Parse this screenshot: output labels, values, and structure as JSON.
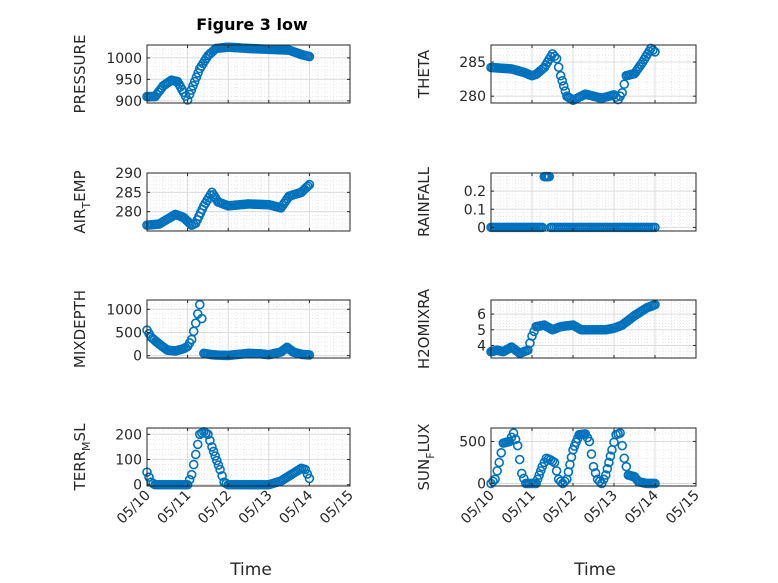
{
  "figure": {
    "title": "Figure 3 low",
    "xlabel": "Time"
  },
  "colors": {
    "marker": "#0072bd",
    "axis": "#262626",
    "grid": "#dcdcdc"
  },
  "chart_data": [
    {
      "id": "pressure",
      "type": "scatter",
      "ylabel": "PRESSURE",
      "ylim": [
        895,
        1030
      ],
      "yticks": [
        900,
        950,
        1000
      ],
      "ytick_labels": [
        "900",
        "950",
        "1000"
      ],
      "xlim": [
        0,
        5
      ],
      "xticks": [
        0,
        1,
        2,
        3,
        4,
        5
      ],
      "xtick_labels": [
        "05/10",
        "05/11",
        "05/12",
        "05/13",
        "05/14",
        "05/15"
      ],
      "show_xtick_labels": false,
      "keypoints": [
        [
          0,
          910
        ],
        [
          0.2,
          910
        ],
        [
          0.4,
          935
        ],
        [
          0.6,
          948
        ],
        [
          0.75,
          945
        ],
        [
          0.9,
          920
        ],
        [
          1.0,
          902
        ],
        [
          1.05,
          915
        ],
        [
          1.3,
          975
        ],
        [
          1.5,
          1005
        ],
        [
          1.7,
          1022
        ],
        [
          2.0,
          1025
        ],
        [
          2.5,
          1022
        ],
        [
          3.0,
          1020
        ],
        [
          3.5,
          1018
        ],
        [
          3.8,
          1008
        ],
        [
          4.0,
          1003
        ]
      ],
      "step": 0.042
    },
    {
      "id": "theta",
      "type": "scatter",
      "ylabel": "THETA",
      "ylim": [
        279,
        287.5
      ],
      "yticks": [
        280,
        285
      ],
      "ytick_labels": [
        "280",
        "285"
      ],
      "xlim": [
        0,
        5
      ],
      "xticks": [
        0,
        1,
        2,
        3,
        4,
        5
      ],
      "xtick_labels": [
        "05/10",
        "05/11",
        "05/12",
        "05/13",
        "05/14",
        "05/15"
      ],
      "show_xtick_labels": false,
      "keypoints": [
        [
          0,
          284.2
        ],
        [
          0.5,
          284.0
        ],
        [
          0.8,
          283.5
        ],
        [
          1.0,
          283.0
        ],
        [
          1.1,
          283.2
        ],
        [
          1.3,
          284.2
        ],
        [
          1.5,
          286.2
        ],
        [
          1.6,
          285.5
        ],
        [
          1.7,
          283.0
        ],
        [
          1.85,
          280.0
        ],
        [
          2.0,
          279.4
        ],
        [
          2.3,
          280.3
        ],
        [
          2.7,
          279.7
        ],
        [
          3.0,
          280.2
        ],
        [
          3.1,
          279.5
        ],
        [
          3.2,
          280.5
        ],
        [
          3.3,
          283.0
        ],
        [
          3.5,
          283.3
        ],
        [
          3.7,
          285.0
        ],
        [
          3.9,
          287.0
        ],
        [
          4.0,
          286.5
        ]
      ],
      "step": 0.042
    },
    {
      "id": "air_temp",
      "type": "scatter",
      "ylabel": "AIR_TEMP",
      "ylim": [
        275,
        290
      ],
      "yticks": [
        280,
        285,
        290
      ],
      "ytick_labels": [
        "280",
        "285",
        "290"
      ],
      "xlim": [
        0,
        5
      ],
      "xticks": [
        0,
        1,
        2,
        3,
        4,
        5
      ],
      "xtick_labels": [
        "05/10",
        "05/11",
        "05/12",
        "05/13",
        "05/14",
        "05/15"
      ],
      "show_xtick_labels": false,
      "keypoints": [
        [
          0,
          276.5
        ],
        [
          0.3,
          276.8
        ],
        [
          0.7,
          279.3
        ],
        [
          0.9,
          278.5
        ],
        [
          1.1,
          276.5
        ],
        [
          1.2,
          277.0
        ],
        [
          1.4,
          281.5
        ],
        [
          1.6,
          285.0
        ],
        [
          1.75,
          282.5
        ],
        [
          2.0,
          281.5
        ],
        [
          2.5,
          282.0
        ],
        [
          3.0,
          281.8
        ],
        [
          3.3,
          281.0
        ],
        [
          3.5,
          284.0
        ],
        [
          3.8,
          285.0
        ],
        [
          4.0,
          287.0
        ]
      ],
      "step": 0.042
    },
    {
      "id": "rainfall",
      "type": "scatter",
      "ylabel": "RAINFALL",
      "ylim": [
        -0.02,
        0.3
      ],
      "yticks": [
        0,
        0.1,
        0.2
      ],
      "ytick_labels": [
        "0",
        "0.1",
        "0.2"
      ],
      "xlim": [
        0,
        5
      ],
      "xticks": [
        0,
        1,
        2,
        3,
        4,
        5
      ],
      "xtick_labels": [
        "05/10",
        "05/11",
        "05/12",
        "05/13",
        "05/14",
        "05/15"
      ],
      "show_xtick_labels": false,
      "keypoints": [
        [
          0,
          0
        ],
        [
          1.25,
          0
        ]
      ],
      "step": 0.042,
      "extra_points": [
        [
          1.3,
          0.28
        ],
        [
          1.32,
          0.28
        ],
        [
          1.34,
          0.28
        ],
        [
          1.36,
          0.28
        ],
        [
          1.38,
          0.28
        ],
        [
          1.4,
          0.28
        ],
        [
          1.42,
          0.28
        ],
        [
          1.46,
          0
        ],
        [
          1.5,
          0
        ],
        [
          1.55,
          0
        ],
        [
          1.6,
          0
        ],
        [
          1.65,
          0
        ],
        [
          1.7,
          0
        ],
        [
          1.75,
          0
        ],
        [
          1.8,
          0
        ],
        [
          1.85,
          0
        ],
        [
          1.9,
          0
        ],
        [
          1.95,
          0
        ],
        [
          2.0,
          0
        ],
        [
          2.05,
          0
        ],
        [
          2.1,
          0
        ],
        [
          2.15,
          0
        ],
        [
          2.2,
          0
        ],
        [
          2.25,
          0
        ],
        [
          2.3,
          0
        ],
        [
          2.35,
          0
        ],
        [
          2.4,
          0
        ],
        [
          2.45,
          0
        ],
        [
          2.5,
          0
        ],
        [
          2.55,
          0
        ],
        [
          2.6,
          0
        ],
        [
          2.65,
          0
        ],
        [
          2.7,
          0
        ],
        [
          2.75,
          0
        ],
        [
          2.8,
          0
        ],
        [
          2.85,
          0
        ],
        [
          2.9,
          0
        ],
        [
          2.95,
          0
        ],
        [
          3.0,
          0
        ],
        [
          3.05,
          0
        ],
        [
          3.1,
          0
        ],
        [
          3.15,
          0
        ],
        [
          3.2,
          0
        ],
        [
          3.25,
          0
        ],
        [
          3.3,
          0
        ],
        [
          3.35,
          0
        ],
        [
          3.4,
          0
        ],
        [
          3.45,
          0
        ],
        [
          3.5,
          0
        ],
        [
          3.55,
          0
        ],
        [
          3.6,
          0
        ],
        [
          3.65,
          0
        ],
        [
          3.7,
          0
        ],
        [
          3.75,
          0
        ],
        [
          3.8,
          0
        ],
        [
          3.85,
          0
        ],
        [
          3.9,
          0
        ],
        [
          3.95,
          0
        ],
        [
          4.0,
          0
        ]
      ]
    },
    {
      "id": "mixdepth",
      "type": "scatter",
      "ylabel": "MIXDEPTH",
      "ylim": [
        -50,
        1200
      ],
      "yticks": [
        0,
        500,
        1000
      ],
      "ytick_labels": [
        "0",
        "500",
        "1000"
      ],
      "xlim": [
        0,
        5
      ],
      "xticks": [
        0,
        1,
        2,
        3,
        4,
        5
      ],
      "xtick_labels": [
        "05/10",
        "05/11",
        "05/12",
        "05/13",
        "05/14",
        "05/15"
      ],
      "show_xtick_labels": false,
      "keypoints": [
        [
          0,
          550
        ],
        [
          0.1,
          400
        ],
        [
          0.3,
          250
        ],
        [
          0.5,
          120
        ],
        [
          0.7,
          100
        ],
        [
          0.9,
          150
        ],
        [
          1.0,
          200
        ],
        [
          1.1,
          350
        ],
        [
          1.2,
          700
        ],
        [
          1.3,
          1100
        ],
        [
          1.35,
          800
        ],
        [
          1.4,
          50
        ],
        [
          1.6,
          20
        ],
        [
          1.8,
          10
        ],
        [
          2.0,
          5
        ],
        [
          2.5,
          50
        ],
        [
          2.8,
          40
        ],
        [
          3.0,
          20
        ],
        [
          3.3,
          80
        ],
        [
          3.45,
          180
        ],
        [
          3.6,
          80
        ],
        [
          3.8,
          30
        ],
        [
          4.0,
          15
        ]
      ],
      "step": 0.042
    },
    {
      "id": "h2omixra",
      "type": "scatter",
      "ylabel": "H2OMIXRA",
      "ylim": [
        3.2,
        6.9
      ],
      "yticks": [
        4,
        5,
        6
      ],
      "ytick_labels": [
        "4",
        "5",
        "6"
      ],
      "xlim": [
        0,
        5
      ],
      "xticks": [
        0,
        1,
        2,
        3,
        4,
        5
      ],
      "xtick_labels": [
        "05/10",
        "05/11",
        "05/12",
        "05/13",
        "05/14",
        "05/15"
      ],
      "show_xtick_labels": false,
      "keypoints": [
        [
          0,
          3.6
        ],
        [
          0.15,
          3.7
        ],
        [
          0.3,
          3.6
        ],
        [
          0.5,
          3.9
        ],
        [
          0.7,
          3.5
        ],
        [
          0.9,
          3.7
        ],
        [
          1.0,
          4.6
        ],
        [
          1.1,
          5.2
        ],
        [
          1.3,
          5.3
        ],
        [
          1.5,
          5.0
        ],
        [
          1.7,
          5.2
        ],
        [
          2.0,
          5.3
        ],
        [
          2.2,
          5.0
        ],
        [
          2.5,
          5.0
        ],
        [
          2.8,
          5.0
        ],
        [
          3.0,
          5.1
        ],
        [
          3.2,
          5.3
        ],
        [
          3.5,
          5.9
        ],
        [
          3.8,
          6.4
        ],
        [
          4.0,
          6.6
        ]
      ],
      "step": 0.042
    },
    {
      "id": "terr_msl",
      "type": "scatter",
      "ylabel": "TERR_MSL",
      "ylim": [
        -5,
        225
      ],
      "yticks": [
        0,
        100,
        200
      ],
      "ytick_labels": [
        "0",
        "100",
        "200"
      ],
      "xlim": [
        0,
        5
      ],
      "xticks": [
        0,
        1,
        2,
        3,
        4,
        5
      ],
      "xtick_labels": [
        "05/10",
        "05/11",
        "05/12",
        "05/13",
        "05/14",
        "05/15"
      ],
      "show_xtick_labels": true,
      "keypoints": [
        [
          0,
          50
        ],
        [
          0.1,
          10
        ],
        [
          0.2,
          0
        ],
        [
          1.0,
          0
        ],
        [
          1.1,
          40
        ],
        [
          1.2,
          120
        ],
        [
          1.3,
          200
        ],
        [
          1.4,
          210
        ],
        [
          1.5,
          200
        ],
        [
          1.6,
          150
        ],
        [
          1.8,
          60
        ],
        [
          1.9,
          10
        ],
        [
          2.0,
          0
        ],
        [
          3.0,
          0
        ],
        [
          3.3,
          15
        ],
        [
          3.6,
          45
        ],
        [
          3.8,
          65
        ],
        [
          3.9,
          60
        ],
        [
          4.0,
          25
        ]
      ],
      "step": 0.042
    },
    {
      "id": "sun_flux",
      "type": "scatter",
      "ylabel": "SUN_FLUX",
      "ylim": [
        -30,
        660
      ],
      "yticks": [
        0,
        500
      ],
      "ytick_labels": [
        "0",
        "500"
      ],
      "xlim": [
        0,
        5
      ],
      "xticks": [
        0,
        1,
        2,
        3,
        4,
        5
      ],
      "xtick_labels": [
        "05/10",
        "05/11",
        "05/12",
        "05/13",
        "05/14",
        "05/15"
      ],
      "show_xtick_labels": true,
      "keypoints": [
        [
          0,
          0
        ],
        [
          0.1,
          50
        ],
        [
          0.2,
          250
        ],
        [
          0.3,
          480
        ],
        [
          0.45,
          500
        ],
        [
          0.55,
          600
        ],
        [
          0.65,
          450
        ],
        [
          0.75,
          120
        ],
        [
          0.85,
          0
        ],
        [
          1.1,
          0
        ],
        [
          1.25,
          200
        ],
        [
          1.35,
          300
        ],
        [
          1.45,
          280
        ],
        [
          1.55,
          250
        ],
        [
          1.65,
          50
        ],
        [
          1.75,
          0
        ],
        [
          1.85,
          50
        ],
        [
          2.0,
          400
        ],
        [
          2.15,
          580
        ],
        [
          2.3,
          590
        ],
        [
          2.4,
          500
        ],
        [
          2.5,
          200
        ],
        [
          2.6,
          50
        ],
        [
          2.7,
          0
        ],
        [
          2.8,
          100
        ],
        [
          2.95,
          400
        ],
        [
          3.05,
          580
        ],
        [
          3.15,
          600
        ],
        [
          3.25,
          300
        ],
        [
          3.35,
          100
        ],
        [
          3.5,
          80
        ],
        [
          3.6,
          20
        ],
        [
          3.8,
          0
        ],
        [
          4.0,
          0
        ]
      ],
      "step": 0.042
    }
  ]
}
